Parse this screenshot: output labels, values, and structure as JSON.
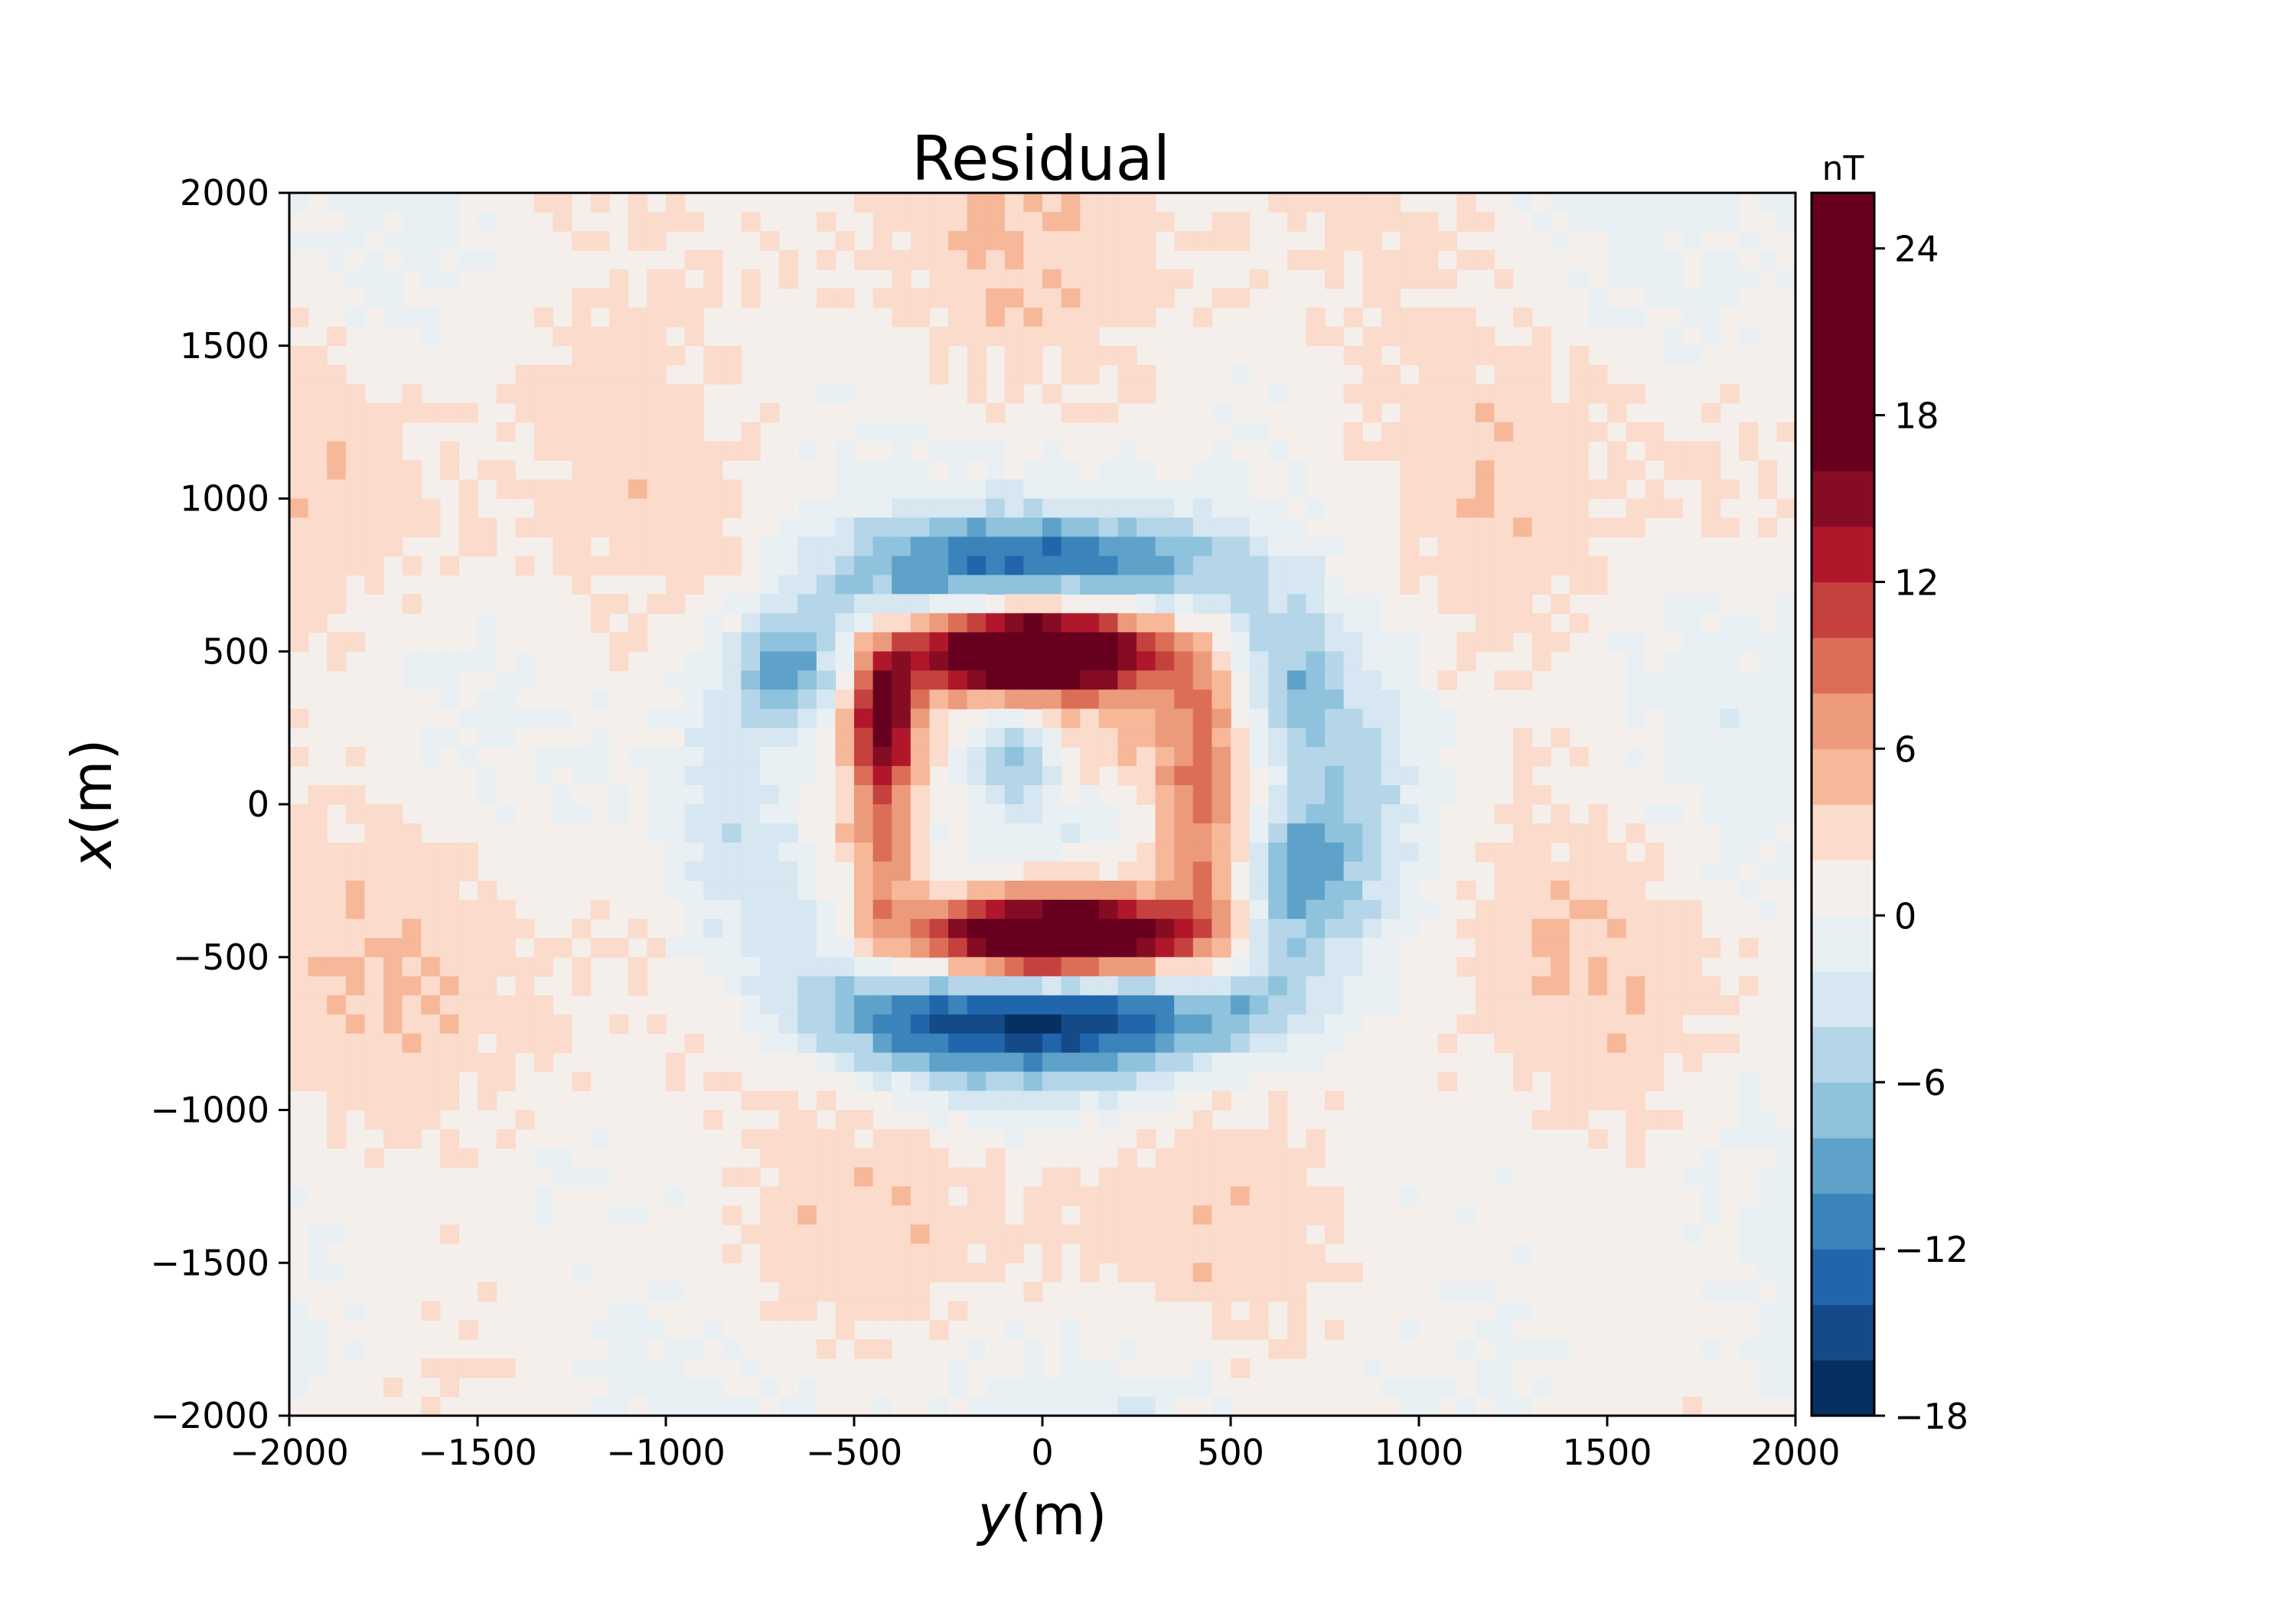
{
  "chart_data": {
    "type": "heatmap",
    "title": "Residual",
    "xlabel_var": "y",
    "xlabel_unit": "(m)",
    "ylabel_var": "x",
    "ylabel_unit": "(m)",
    "xlim": [
      -2000,
      2000
    ],
    "ylim": [
      -2000,
      2000
    ],
    "xticks": [
      -2000,
      -1500,
      -1000,
      -500,
      0,
      500,
      1000,
      1500,
      2000
    ],
    "yticks": [
      -2000,
      -1500,
      -1000,
      -500,
      0,
      500,
      1000,
      1500,
      2000
    ],
    "xtick_labels": [
      "−2000",
      "−1500",
      "−1000",
      "−500",
      "0",
      "500",
      "1000",
      "1500",
      "2000"
    ],
    "ytick_labels": [
      "−2000",
      "−1500",
      "−1000",
      "−500",
      "0",
      "500",
      "1000",
      "1500",
      "2000"
    ],
    "grid": false,
    "colormap": "RdBu_r",
    "colorbar": {
      "unit": "nT",
      "range": [
        -18,
        26
      ],
      "levels": [
        -18,
        -16,
        -14,
        -12,
        -10,
        -8,
        -6,
        -4,
        -2,
        0,
        2,
        4,
        6,
        8,
        10,
        12,
        14,
        16,
        26
      ],
      "level_colors": [
        "#053061",
        "#144a87",
        "#2166ac",
        "#3a84bb",
        "#5ea2ca",
        "#8fc2dd",
        "#b4d6e8",
        "#d6e7f1",
        "#e9f0f4",
        "#f5efec",
        "#fbdbcb",
        "#f7b799",
        "#ec9a7c",
        "#dc6e57",
        "#c5413e",
        "#b0172b",
        "#860c24",
        "#67001f"
      ],
      "ticks": [
        -18,
        -12,
        -6,
        0,
        6,
        12,
        18,
        24
      ],
      "tick_labels": [
        "−18",
        "−12",
        "−6",
        "0",
        "6",
        "12",
        "18",
        "24"
      ]
    },
    "anomalies": [
      {
        "description": "positive lobe north",
        "y": -30,
        "x": 500,
        "peak_nT": 26,
        "sy": 230,
        "sx": 90
      },
      {
        "description": "positive lobe south",
        "y": 30,
        "x": -430,
        "peak_nT": 26,
        "sy": 250,
        "sx": 90
      },
      {
        "description": "positive lobe west",
        "y": -420,
        "x": 300,
        "peak_nT": 16,
        "sy": 60,
        "sx": 160
      },
      {
        "description": "positive arc west",
        "y": -430,
        "x": -150,
        "peak_nT": 7,
        "sy": 60,
        "sx": 220
      },
      {
        "description": "positive arc east",
        "y": 420,
        "x": 50,
        "peak_nT": 7,
        "sy": 70,
        "sx": 380
      },
      {
        "description": "negative ring",
        "y": 0,
        "x": 0,
        "peak_nT": -6,
        "radius": 820,
        "width": 150
      },
      {
        "description": "negative lobe north",
        "y": 0,
        "x": 800,
        "peak_nT": -8,
        "sy": 320,
        "sx": 90
      },
      {
        "description": "negative lobe south",
        "y": 0,
        "x": -700,
        "peak_nT": -12,
        "sy": 350,
        "sx": 100
      },
      {
        "description": "negative spot west",
        "y": -680,
        "x": 450,
        "peak_nT": -6,
        "sy": 90,
        "sx": 120
      },
      {
        "description": "negative spot east",
        "y": 680,
        "x": -200,
        "peak_nT": -7,
        "sy": 80,
        "sx": 140
      },
      {
        "description": "negative spot east upper",
        "y": 680,
        "x": 320,
        "peak_nT": -4,
        "sy": 70,
        "sx": 120
      },
      {
        "description": "negative core",
        "y": -80,
        "x": 180,
        "peak_nT": -8,
        "sy": 90,
        "sx": 110
      },
      {
        "description": "negative core lower",
        "y": 50,
        "x": -50,
        "peak_nT": -4,
        "sy": 180,
        "sx": 120
      }
    ]
  }
}
